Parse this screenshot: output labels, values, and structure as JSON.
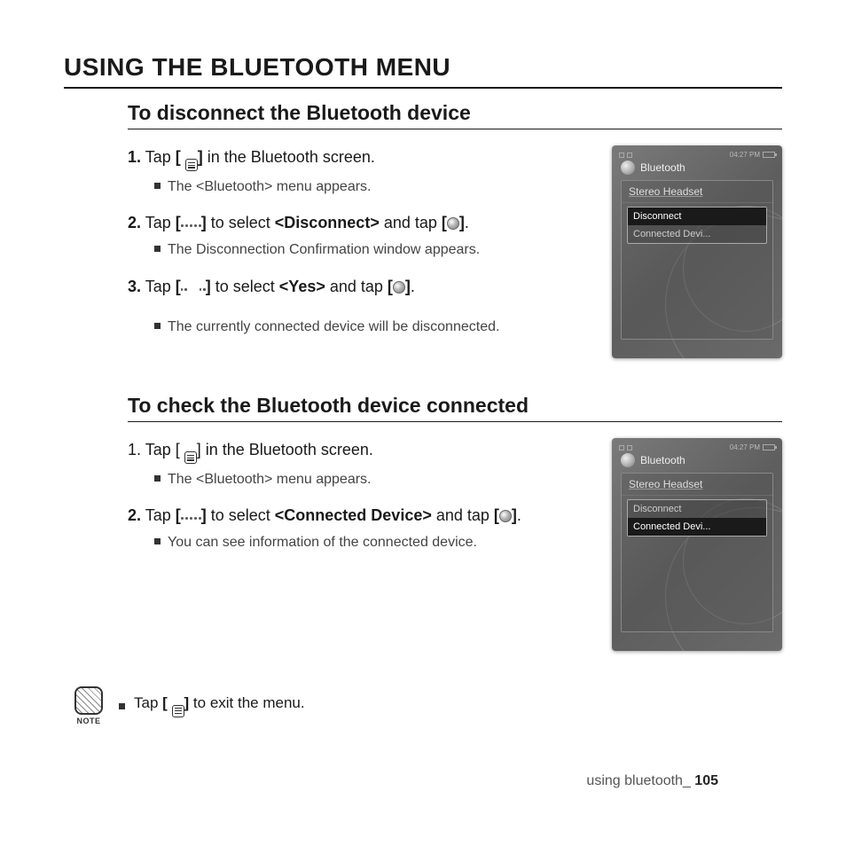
{
  "colors": {
    "text": "#1a1a1a",
    "subtext": "#444444",
    "rule": "#1a1a1a",
    "device_bg_from": "#7a7a7a",
    "device_bg_to": "#5e5e5e",
    "device_text": "#dddddd",
    "device_dim": "#999999"
  },
  "main_title": "USING THE BLUETOOTH MENU",
  "section1": {
    "title": "To disconnect the Bluetooth device",
    "steps": [
      {
        "num": "1.",
        "pre": "Tap ",
        "br_open": "[ ",
        "br_close": "]",
        "post": " in the Bluetooth screen.",
        "bullet": "The <Bluetooth> menu appears."
      },
      {
        "num": "2.",
        "pre": "Tap ",
        "br_open": "[",
        "br_close": "]",
        "mid1": " to select ",
        "bold1": "<Disconnect>",
        "mid2": " and tap ",
        "br2_open": "[",
        "br2_close": "]",
        "post": ".",
        "bullet": "The Disconnection Confirmation window appears."
      },
      {
        "num": "3.",
        "pre": "Tap ",
        "br_open": "[",
        "br_close": "]",
        "mid1": " to select ",
        "bold1": "<Yes>",
        "mid2": " and tap ",
        "br2_open": "[",
        "br2_close": "]",
        "post": ".",
        "bullet": "The currently connected device will be disconnected."
      }
    ],
    "device": {
      "time": "04:27 PM",
      "title": "Bluetooth",
      "row1": "Stereo Headset",
      "menu": [
        "Disconnect",
        "Connected Devi..."
      ],
      "selected_index": 0
    }
  },
  "section2": {
    "title": "To check the Bluetooth device connected",
    "steps": [
      {
        "num": "1.",
        "pre": "Tap [ ",
        "post_icon": "] in the Bluetooth screen.",
        "bullet": "The <Bluetooth> menu appears."
      },
      {
        "num": "2.",
        "pre": "Tap ",
        "br_open": "[",
        "br_close": "]",
        "mid1": " to select ",
        "bold1": "<Connected Device>",
        "mid2": " and tap ",
        "br2_open": "[",
        "br2_close": "]",
        "post": ".",
        "bullet": "You can see information of the connected device."
      }
    ],
    "device": {
      "time": "04:27 PM",
      "title": "Bluetooth",
      "row1": "Stereo Headset",
      "menu": [
        "Disconnect",
        "Connected Devi..."
      ],
      "selected_index": 1
    }
  },
  "note": {
    "label": "NOTE",
    "pre": "Tap ",
    "br_open": "[ ",
    "br_close": "]",
    "post": " to exit the menu."
  },
  "footer": {
    "text": "using bluetooth_ ",
    "page": "105"
  }
}
